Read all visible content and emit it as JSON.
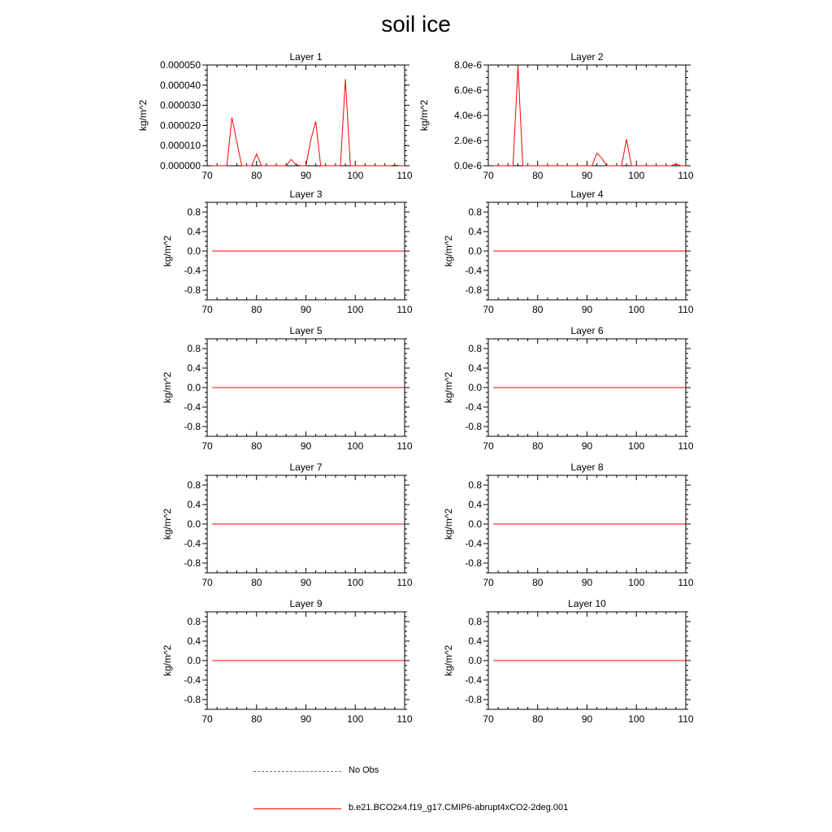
{
  "figure_title": "soil ice",
  "colors": {
    "model": "#ff0000",
    "obs": "#6a6acd",
    "axis": "#000000"
  },
  "legend": [
    {
      "label": "No Obs",
      "style": "dashed",
      "color": "#6a6acd"
    },
    {
      "label": "b.e21.BCO2x4.f19_g17.CMIP6-abrupt4xCO2-2deg.001",
      "style": "solid",
      "color": "#ff0000"
    }
  ],
  "chart_data": [
    {
      "type": "line",
      "title": "Layer 1",
      "ylabel": "kg/m^2",
      "xlim": [
        70,
        110
      ],
      "xticks": [
        70,
        80,
        90,
        100,
        110
      ],
      "ylim": [
        0,
        5e-05
      ],
      "yticks": [
        0,
        1e-05,
        2e-05,
        3e-05,
        4e-05,
        5e-05
      ],
      "yticklabels": [
        "0.000000",
        "0.000010",
        "0.000020",
        "0.000030",
        "0.000040",
        "0.000050"
      ],
      "series": [
        {
          "name": "b.e21.BCO2x4.f19_g17.CMIP6-abrupt4xCO2-2deg.001",
          "x": [
            71,
            72,
            73,
            74,
            75,
            76,
            77,
            78,
            79,
            80,
            81,
            82,
            83,
            84,
            85,
            86,
            87,
            88,
            89,
            90,
            91,
            92,
            93,
            94,
            95,
            96,
            97,
            98,
            99,
            100,
            101,
            102,
            103,
            104,
            105,
            106,
            107,
            108,
            109,
            110
          ],
          "y": [
            0,
            0,
            0,
            0,
            2.4e-05,
            1.2e-05,
            0,
            0,
            0,
            5.8e-06,
            0,
            0,
            0,
            0,
            0,
            0,
            3.2e-06,
            5e-07,
            0,
            0,
            1.3e-05,
            2.2e-05,
            0,
            0,
            0,
            0,
            0,
            4.3e-05,
            0,
            0,
            0,
            0,
            0,
            0,
            0,
            0,
            0,
            3e-07,
            0,
            0
          ]
        }
      ]
    },
    {
      "type": "line",
      "title": "Layer 2",
      "ylabel": "kg/m^2",
      "xlim": [
        70,
        110
      ],
      "xticks": [
        70,
        80,
        90,
        100,
        110
      ],
      "ylim": [
        0,
        8e-06
      ],
      "yticks": [
        0,
        2e-06,
        4e-06,
        6e-06,
        8e-06
      ],
      "yticklabels": [
        "0.0e-6",
        "2.0e-6",
        "4.0e-6",
        "6.0e-6",
        "8.0e-6"
      ],
      "series": [
        {
          "name": "b.e21.BCO2x4.f19_g17.CMIP6-abrupt4xCO2-2deg.001",
          "x": [
            71,
            72,
            73,
            74,
            75,
            76,
            77,
            78,
            79,
            80,
            81,
            82,
            83,
            84,
            85,
            86,
            87,
            88,
            89,
            90,
            91,
            92,
            93,
            94,
            95,
            96,
            97,
            98,
            99,
            100,
            101,
            102,
            103,
            104,
            105,
            106,
            107,
            108,
            109,
            110
          ],
          "y": [
            0,
            0,
            0,
            0,
            0,
            7.9e-06,
            0,
            0,
            0,
            0,
            0,
            0,
            0,
            0,
            0,
            0,
            0,
            0,
            0,
            0,
            0,
            1e-06,
            6e-07,
            0,
            0,
            0,
            0,
            2.1e-06,
            0,
            0,
            0,
            0,
            0,
            0,
            0,
            0,
            0,
            1.5e-07,
            0,
            0
          ]
        }
      ]
    },
    {
      "type": "line",
      "title": "Layer 3",
      "ylabel": "kg/m^2",
      "xlim": [
        70,
        110
      ],
      "xticks": [
        70,
        80,
        90,
        100,
        110
      ],
      "ylim": [
        -1,
        1
      ],
      "yticks": [
        -0.8,
        -0.4,
        0,
        0.4,
        0.8
      ],
      "yticklabels": [
        "-0.8",
        "-0.4",
        "0.0",
        "0.4",
        "0.8"
      ],
      "series": [
        {
          "name": "b.e21.BCO2x4.f19_g17.CMIP6-abrupt4xCO2-2deg.001",
          "x": [
            71,
            110
          ],
          "y": [
            0,
            0
          ]
        }
      ]
    },
    {
      "type": "line",
      "title": "Layer 4",
      "ylabel": "kg/m^2",
      "xlim": [
        70,
        110
      ],
      "xticks": [
        70,
        80,
        90,
        100,
        110
      ],
      "ylim": [
        -1,
        1
      ],
      "yticks": [
        -0.8,
        -0.4,
        0,
        0.4,
        0.8
      ],
      "yticklabels": [
        "-0.8",
        "-0.4",
        "0.0",
        "0.4",
        "0.8"
      ],
      "series": [
        {
          "name": "b.e21.BCO2x4.f19_g17.CMIP6-abrupt4xCO2-2deg.001",
          "x": [
            71,
            110
          ],
          "y": [
            0,
            0
          ]
        }
      ]
    },
    {
      "type": "line",
      "title": "Layer 5",
      "ylabel": "kg/m^2",
      "xlim": [
        70,
        110
      ],
      "xticks": [
        70,
        80,
        90,
        100,
        110
      ],
      "ylim": [
        -1,
        1
      ],
      "yticks": [
        -0.8,
        -0.4,
        0,
        0.4,
        0.8
      ],
      "yticklabels": [
        "-0.8",
        "-0.4",
        "0.0",
        "0.4",
        "0.8"
      ],
      "series": [
        {
          "name": "b.e21.BCO2x4.f19_g17.CMIP6-abrupt4xCO2-2deg.001",
          "x": [
            71,
            110
          ],
          "y": [
            0,
            0
          ]
        }
      ]
    },
    {
      "type": "line",
      "title": "Layer 6",
      "ylabel": "kg/m^2",
      "xlim": [
        70,
        110
      ],
      "xticks": [
        70,
        80,
        90,
        100,
        110
      ],
      "ylim": [
        -1,
        1
      ],
      "yticks": [
        -0.8,
        -0.4,
        0,
        0.4,
        0.8
      ],
      "yticklabels": [
        "-0.8",
        "-0.4",
        "0.0",
        "0.4",
        "0.8"
      ],
      "series": [
        {
          "name": "b.e21.BCO2x4.f19_g17.CMIP6-abrupt4xCO2-2deg.001",
          "x": [
            71,
            110
          ],
          "y": [
            0,
            0
          ]
        }
      ]
    },
    {
      "type": "line",
      "title": "Layer 7",
      "ylabel": "kg/m^2",
      "xlim": [
        70,
        110
      ],
      "xticks": [
        70,
        80,
        90,
        100,
        110
      ],
      "ylim": [
        -1,
        1
      ],
      "yticks": [
        -0.8,
        -0.4,
        0,
        0.4,
        0.8
      ],
      "yticklabels": [
        "-0.8",
        "-0.4",
        "0.0",
        "0.4",
        "0.8"
      ],
      "series": [
        {
          "name": "b.e21.BCO2x4.f19_g17.CMIP6-abrupt4xCO2-2deg.001",
          "x": [
            71,
            110
          ],
          "y": [
            0,
            0
          ]
        }
      ]
    },
    {
      "type": "line",
      "title": "Layer 8",
      "ylabel": "kg/m^2",
      "xlim": [
        70,
        110
      ],
      "xticks": [
        70,
        80,
        90,
        100,
        110
      ],
      "ylim": [
        -1,
        1
      ],
      "yticks": [
        -0.8,
        -0.4,
        0,
        0.4,
        0.8
      ],
      "yticklabels": [
        "-0.8",
        "-0.4",
        "0.0",
        "0.4",
        "0.8"
      ],
      "series": [
        {
          "name": "b.e21.BCO2x4.f19_g17.CMIP6-abrupt4xCO2-2deg.001",
          "x": [
            71,
            110
          ],
          "y": [
            0,
            0
          ]
        }
      ]
    },
    {
      "type": "line",
      "title": "Layer 9",
      "ylabel": "kg/m^2",
      "xlim": [
        70,
        110
      ],
      "xticks": [
        70,
        80,
        90,
        100,
        110
      ],
      "ylim": [
        -1,
        1
      ],
      "yticks": [
        -0.8,
        -0.4,
        0,
        0.4,
        0.8
      ],
      "yticklabels": [
        "-0.8",
        "-0.4",
        "0.0",
        "0.4",
        "0.8"
      ],
      "series": [
        {
          "name": "b.e21.BCO2x4.f19_g17.CMIP6-abrupt4xCO2-2deg.001",
          "x": [
            71,
            110
          ],
          "y": [
            0,
            0
          ]
        }
      ]
    },
    {
      "type": "line",
      "title": "Layer 10",
      "ylabel": "kg/m^2",
      "xlim": [
        70,
        110
      ],
      "xticks": [
        70,
        80,
        90,
        100,
        110
      ],
      "ylim": [
        -1,
        1
      ],
      "yticks": [
        -0.8,
        -0.4,
        0,
        0.4,
        0.8
      ],
      "yticklabels": [
        "-0.8",
        "-0.4",
        "0.0",
        "0.4",
        "0.8"
      ],
      "series": [
        {
          "name": "b.e21.BCO2x4.f19_g17.CMIP6-abrupt4xCO2-2deg.001",
          "x": [
            71,
            110
          ],
          "y": [
            0,
            0
          ]
        }
      ]
    }
  ]
}
